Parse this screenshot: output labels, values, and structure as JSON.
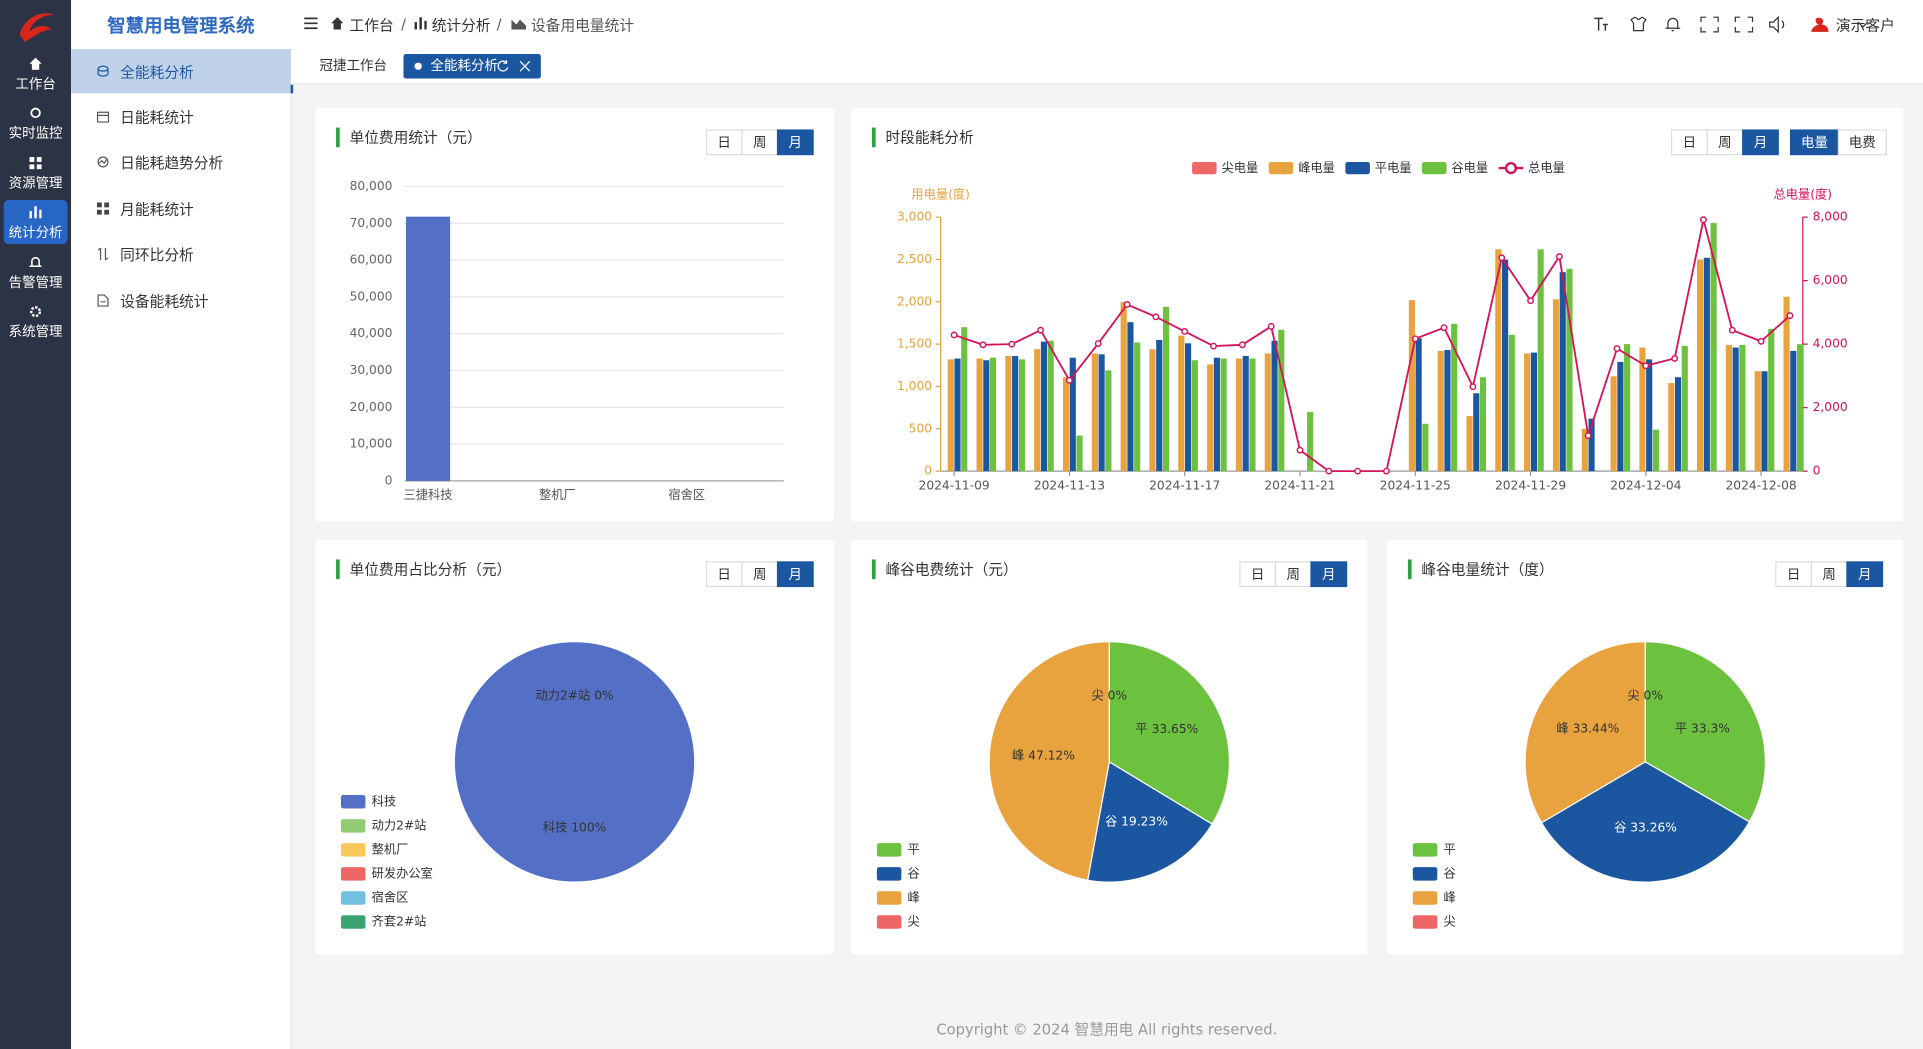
{
  "app_title": "智慧用电管理系统",
  "sidebar": [
    "工作台",
    "实时监控",
    "资源管理",
    "统计分析",
    "告警管理",
    "系统管理"
  ],
  "submenu": [
    "全能耗分析",
    "日能耗统计",
    "日能耗趋势分析",
    "月能耗统计",
    "同环比分析",
    "设备能耗统计"
  ],
  "breadcrumb": [
    "工作台",
    "统计分析",
    "设备用电量统计"
  ],
  "user": "演示客户",
  "tabs": [
    "冠捷工作台",
    "全能耗分析"
  ],
  "footer": "Copyright © 2024 智慧用电 All rights reserved.",
  "chart_data": [
    {
      "type": "bar",
      "title": "单位费用统计（元）",
      "buttons": [
        "日",
        "周",
        "月"
      ],
      "selected": "月",
      "categories": [
        "三捷科技",
        "整机厂",
        "宿舍区"
      ],
      "values": [
        71800,
        0,
        0
      ],
      "color": "#5470c6",
      "ylim": [
        0,
        80000
      ],
      "yticks": [
        0,
        {
          "value": 10000,
          "label": "10,000"
        },
        {
          "value": 20000,
          "label": "20,000"
        },
        {
          "value": 30000,
          "label": "30,000"
        },
        {
          "value": 40000,
          "label": "40,000"
        },
        {
          "value": 50000,
          "label": "50,000"
        },
        {
          "value": 60000,
          "label": "60,000"
        },
        {
          "value": 70000,
          "label": "70,000"
        },
        {
          "value": 80000,
          "label": "80,000"
        }
      ],
      "grid": true
    },
    {
      "type": "combo",
      "title": "时段能耗分析",
      "buttons": [
        "日",
        "周",
        "月"
      ],
      "selected": "月",
      "metric_buttons": [
        "电量",
        "电费"
      ],
      "selected_metric": "电量",
      "y_axis_label": "用电量(度)",
      "y2_axis_label": "总电量(度)",
      "y_axis_color": "#e8a23e",
      "y2_axis_color": "#d4145a",
      "categories": [
        "2024-11-09",
        null,
        null,
        null,
        "2024-11-13",
        null,
        null,
        null,
        "2024-11-17",
        null,
        null,
        null,
        "2024-11-21",
        null,
        null,
        null,
        "2024-11-25",
        null,
        null,
        null,
        "2024-11-29",
        null,
        null,
        null,
        "2024-12-04",
        null,
        null,
        null,
        "2024-12-08",
        null
      ],
      "series": [
        {
          "name": "尖电量",
          "color": "#ee6666",
          "values": [
            0,
            0,
            0,
            0,
            0,
            0,
            0,
            0,
            0,
            0,
            0,
            0,
            0,
            0,
            0,
            0,
            0,
            0,
            0,
            0,
            0,
            0,
            0,
            0,
            0,
            0,
            0,
            0,
            0,
            0
          ]
        },
        {
          "name": "峰电量",
          "color": "#e8a23e",
          "values": [
            1320,
            1330,
            1360,
            1440,
            1110,
            1390,
            2000,
            1440,
            1600,
            1260,
            1330,
            1390,
            0,
            0,
            0,
            0,
            2020,
            1420,
            650,
            2620,
            1390,
            2030,
            500,
            1120,
            1460,
            1040,
            2500,
            1490,
            1180,
            2060
          ]
        },
        {
          "name": "平电量",
          "color": "#1b56a0",
          "values": [
            1330,
            1310,
            1360,
            1530,
            1340,
            1380,
            1760,
            1550,
            1510,
            1340,
            1360,
            1540,
            0,
            0,
            0,
            0,
            1570,
            1430,
            920,
            2500,
            1400,
            2350,
            620,
            1290,
            1320,
            1110,
            2520,
            1460,
            1180,
            1420
          ]
        },
        {
          "name": "谷电量",
          "color": "#6cc13e",
          "values": [
            1700,
            1340,
            1320,
            1540,
            420,
            1190,
            1520,
            1940,
            1310,
            1330,
            1330,
            1670,
            700,
            0,
            0,
            0,
            560,
            1740,
            1110,
            1610,
            2620,
            2390,
            0,
            1500,
            490,
            1480,
            2930,
            1490,
            1680,
            1500
          ]
        },
        {
          "name": "总电量",
          "color": "#d4145a",
          "axis": "y2",
          "values": [
            4290,
            3980,
            4000,
            4440,
            2860,
            4020,
            5250,
            4860,
            4400,
            3940,
            3980,
            4560,
            660,
            0,
            0,
            0,
            4170,
            4520,
            2660,
            6720,
            5370,
            6760,
            1120,
            3860,
            3320,
            3550,
            7920,
            4440,
            4090,
            4900
          ]
        }
      ],
      "ylim": [
        0,
        3000
      ],
      "yticks": [
        0,
        500,
        {
          "value": 1000,
          "label": "1,000"
        },
        {
          "value": 1500,
          "label": "1,500"
        },
        {
          "value": 2000,
          "label": "2,000"
        },
        {
          "value": 2500,
          "label": "2,500"
        },
        {
          "value": 3000,
          "label": "3,000"
        }
      ],
      "y2lim": [
        0,
        8000
      ],
      "y2ticks": [
        0,
        {
          "value": 2000,
          "label": "2,000"
        },
        {
          "value": 4000,
          "label": "4,000"
        },
        {
          "value": 6000,
          "label": "6,000"
        },
        {
          "value": 8000,
          "label": "8,000"
        }
      ]
    },
    {
      "type": "pie",
      "title": "单位费用占比分析（元）",
      "buttons": [
        "日",
        "周",
        "月"
      ],
      "selected": "月",
      "categories": [
        "科技",
        "动力2#站",
        "整机厂",
        "研发办公室",
        "宿舍区",
        "齐套2#站"
      ],
      "values": [
        100,
        0,
        0,
        0,
        0,
        0
      ],
      "value_labels": [
        "科技 100%",
        "动力2#站 0%",
        null,
        null,
        null,
        null
      ],
      "colors": [
        "#5470c6",
        "#91cc75",
        "#fac858",
        "#ee6666",
        "#73c0de",
        "#3ba272"
      ]
    },
    {
      "type": "pie",
      "title": "峰谷电费统计（元）",
      "buttons": [
        "日",
        "周",
        "月"
      ],
      "selected": "月",
      "categories": [
        "平",
        "谷",
        "峰",
        "尖"
      ],
      "values": [
        33.65,
        19.23,
        47.12,
        0
      ],
      "value_labels": [
        "平 33.65%",
        "谷 19.23%",
        "峰 47.12%",
        "尖 0%"
      ],
      "colors": [
        "#6cc13e",
        "#1b56a0",
        "#e8a23e",
        "#ee6666"
      ]
    },
    {
      "type": "pie",
      "title": "峰谷电量统计（度）",
      "buttons": [
        "日",
        "周",
        "月"
      ],
      "selected": "月",
      "categories": [
        "平",
        "谷",
        "峰",
        "尖"
      ],
      "values": [
        33.3,
        33.26,
        33.44,
        0
      ],
      "value_labels": [
        "平 33.3%",
        "谷 33.26%",
        "峰 33.44%",
        "尖 0%"
      ],
      "colors": [
        "#6cc13e",
        "#1b56a0",
        "#e8a23e",
        "#ee6666"
      ]
    }
  ]
}
